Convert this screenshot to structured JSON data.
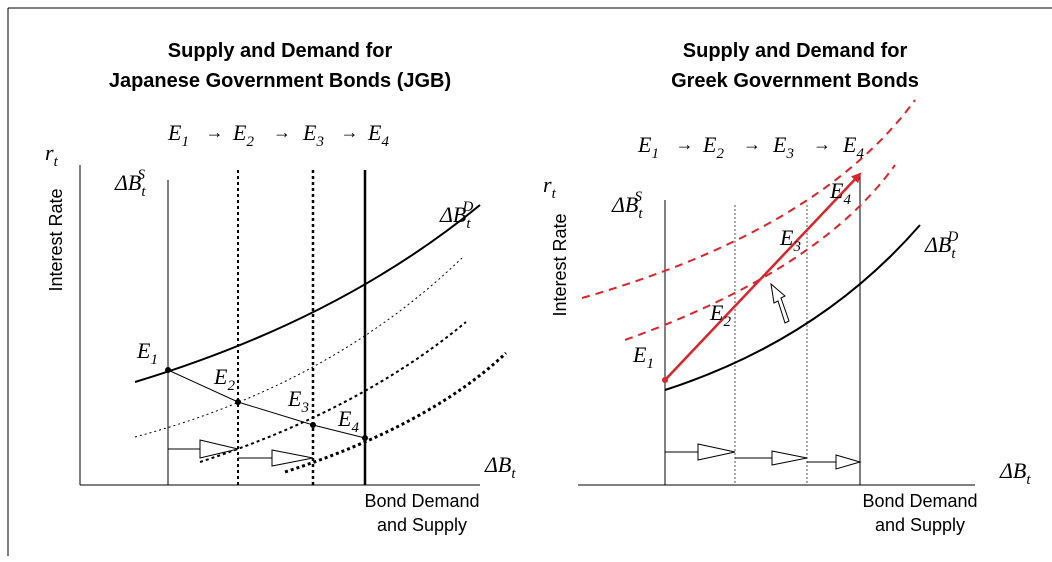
{
  "panels": [
    {
      "title": [
        "Supply and Demand for",
        "Japanese Government Bonds (JGB)"
      ],
      "sequence": [
        {
          "main": "E",
          "sub": "1"
        },
        {
          "main": "E",
          "sub": "2"
        },
        {
          "main": "E",
          "sub": "3"
        },
        {
          "main": "E",
          "sub": "4"
        }
      ],
      "sequence_arrow": "→",
      "y_symbol": {
        "main": "r",
        "sub": "t"
      },
      "y_label": "Interest Rate",
      "supply_label": {
        "main": "ΔB",
        "sub": "t",
        "sup": "S"
      },
      "demand_label": {
        "main": "ΔB",
        "sub": "t",
        "sup": "D"
      },
      "x_symbol": {
        "main": "ΔB",
        "sub": "t"
      },
      "x_label": [
        "Bond Demand",
        "and Supply"
      ],
      "points": [
        {
          "main": "E",
          "sub": "1"
        },
        {
          "main": "E",
          "sub": "2"
        },
        {
          "main": "E",
          "sub": "3"
        },
        {
          "main": "E",
          "sub": "4"
        }
      ]
    },
    {
      "title": [
        "Supply and Demand for",
        "Greek Government Bonds"
      ],
      "sequence": [
        {
          "main": "E",
          "sub": "1"
        },
        {
          "main": "E",
          "sub": "2"
        },
        {
          "main": "E",
          "sub": "3"
        },
        {
          "main": "E",
          "sub": "4"
        }
      ],
      "sequence_arrow": "→",
      "y_symbol": {
        "main": "r",
        "sub": "t"
      },
      "y_label": "Interest Rate",
      "supply_label": {
        "main": "ΔB",
        "sub": "t",
        "sup": "S"
      },
      "demand_label": {
        "main": "ΔB",
        "sub": "t",
        "sup": "D"
      },
      "x_symbol": {
        "main": "ΔB",
        "sub": "t"
      },
      "x_label": [
        "Bond Demand",
        "and Supply"
      ],
      "points": [
        {
          "main": "E",
          "sub": "1"
        },
        {
          "main": "E",
          "sub": "2"
        },
        {
          "main": "E",
          "sub": "3"
        },
        {
          "main": "E",
          "sub": "4"
        }
      ]
    }
  ]
}
